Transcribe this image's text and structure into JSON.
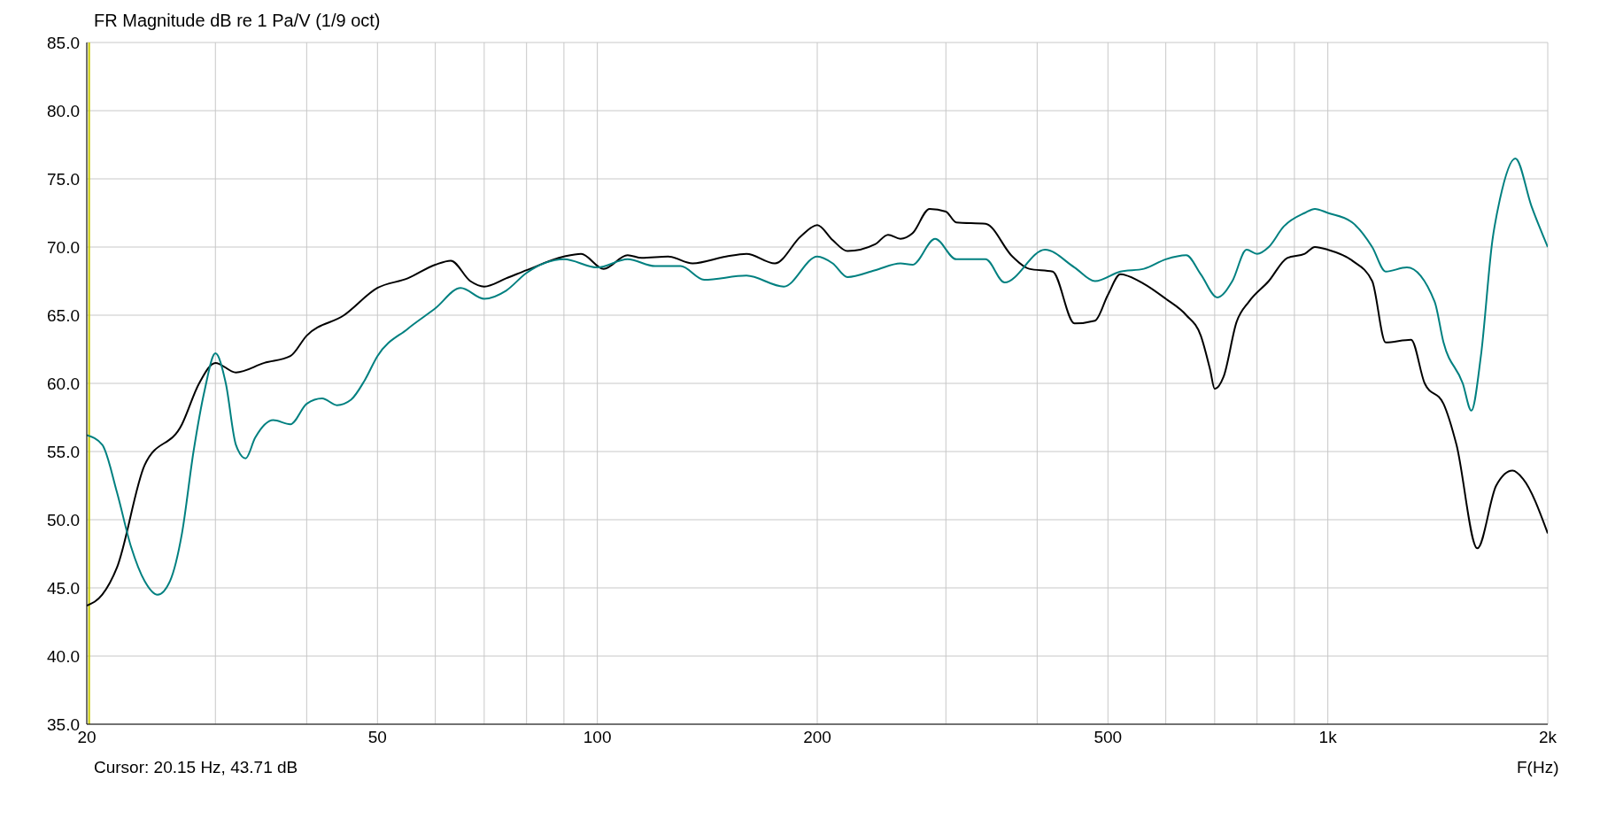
{
  "chart_data": {
    "type": "line",
    "title": "FR Magnitude dB re 1 Pa/V (1/9 oct)",
    "xlabel": "F(Hz)",
    "annotations": [
      "Cursor: 20.15 Hz, 43.71 dB"
    ],
    "log": "x",
    "grid": true,
    "marker": "none",
    "line_style": "solid",
    "xlim": [
      20,
      2000
    ],
    "xticks": [
      20,
      {
        "value": 30,
        "label": null
      },
      {
        "value": 40,
        "label": null
      },
      50,
      {
        "value": 60,
        "label": null
      },
      {
        "value": 70,
        "label": null
      },
      {
        "value": 80,
        "label": null
      },
      {
        "value": 90,
        "label": null
      },
      100,
      200,
      {
        "value": 300,
        "label": null
      },
      {
        "value": 400,
        "label": null
      },
      500,
      {
        "value": 600,
        "label": null
      },
      {
        "value": 700,
        "label": null
      },
      {
        "value": 800,
        "label": null
      },
      {
        "value": 900,
        "label": null
      },
      {
        "value": 1000,
        "label": "1k"
      },
      {
        "value": 2000,
        "label": "2k"
      }
    ],
    "ylim": [
      35,
      85
    ],
    "yticks": [
      {
        "value": 35,
        "label": "35.0"
      },
      {
        "value": 40,
        "label": "40.0"
      },
      {
        "value": 45,
        "label": "45.0"
      },
      {
        "value": 50,
        "label": "50.0"
      },
      {
        "value": 55,
        "label": "55.0"
      },
      {
        "value": 60,
        "label": "60.0"
      },
      {
        "value": 65,
        "label": "65.0"
      },
      {
        "value": 70,
        "label": "70.0"
      },
      {
        "value": 75,
        "label": "75.0"
      },
      {
        "value": 80,
        "label": "80.0"
      },
      {
        "value": 85,
        "label": "85.0"
      }
    ],
    "ref_lines": [
      {
        "axis": "x",
        "value": 20.15,
        "color": "#c8c800"
      }
    ],
    "series": [
      {
        "color": "#000000",
        "x": [
          20,
          21,
          22,
          24,
          27,
          28.5,
          30,
          32,
          35,
          38,
          40,
          45,
          50,
          55,
          60,
          63,
          67,
          70,
          75,
          80,
          90,
          95,
          102,
          110,
          115,
          125,
          135,
          150,
          160,
          175,
          190,
          200,
          210,
          220,
          240,
          250,
          260,
          270,
          285,
          300,
          310,
          340,
          370,
          390,
          420,
          450,
          480,
          500,
          520,
          560,
          600,
          640,
          670,
          690,
          700,
          720,
          750,
          780,
          830,
          880,
          930,
          960,
          1000,
          1080,
          1150,
          1200,
          1300,
          1357,
          1440,
          1500,
          1602,
          1700,
          1790,
          1850,
          2000
        ],
        "values": [
          43.7,
          44.5,
          46.5,
          54,
          57,
          60,
          61.5,
          60.8,
          61.5,
          62,
          63.5,
          65,
          67,
          67.7,
          68.7,
          69,
          67.5,
          67.1,
          67.7,
          68.3,
          69.3,
          69.5,
          68.4,
          69.4,
          69.2,
          69.3,
          68.8,
          69.3,
          69.5,
          68.8,
          70.8,
          71.6,
          70.5,
          69.7,
          70.2,
          70.9,
          70.6,
          71,
          72.8,
          72.6,
          71.8,
          71.7,
          69.3,
          68.4,
          68.2,
          64.4,
          64.6,
          66.5,
          68,
          67.3,
          66.2,
          65,
          63.5,
          61,
          59.6,
          60.5,
          64.5,
          66,
          67.5,
          69.2,
          69.5,
          70,
          69.8,
          69,
          67.5,
          63,
          63.2,
          60,
          58.5,
          55.5,
          47.9,
          52.5,
          53.6,
          53,
          49
        ]
      },
      {
        "color": "#008080",
        "x": [
          20,
          21,
          22,
          23,
          24,
          25,
          26,
          27,
          28,
          29,
          30,
          31,
          32,
          33,
          34,
          36,
          38,
          40,
          42,
          44,
          46,
          48,
          50,
          55,
          60,
          65,
          70,
          75,
          80,
          90,
          100,
          110,
          120,
          130,
          140,
          160,
          180,
          200,
          210,
          220,
          240,
          260,
          270,
          290,
          310,
          340,
          361,
          410,
          450,
          480,
          520,
          560,
          600,
          640,
          670,
          706,
          740,
          774,
          800,
          830,
          870,
          930,
          960,
          1000,
          1080,
          1150,
          1200,
          1283,
          1400,
          1440,
          1530,
          1572,
          1620,
          1680,
          1720,
          1806,
          1900,
          2000
        ],
        "values": [
          56.2,
          55.5,
          52,
          48,
          45.5,
          44.5,
          45.5,
          49,
          55,
          59.5,
          62.2,
          60,
          55.5,
          54.5,
          56,
          57.3,
          57,
          58.5,
          58.9,
          58.4,
          58.8,
          60.2,
          62,
          64,
          65.5,
          67,
          66.2,
          66.8,
          68.1,
          69.1,
          68.5,
          69.1,
          68.6,
          68.6,
          67.6,
          67.9,
          67.1,
          69.3,
          68.8,
          67.8,
          68.3,
          68.8,
          68.7,
          70.6,
          69.1,
          69.1,
          67.4,
          69.8,
          68.5,
          67.5,
          68.2,
          68.4,
          69.1,
          69.4,
          68,
          66.3,
          67.5,
          69.8,
          69.5,
          70,
          71.5,
          72.5,
          72.8,
          72.5,
          71.8,
          70,
          68.2,
          68.5,
          66,
          63,
          60,
          58,
          62,
          70.5,
          73.5,
          76.5,
          73,
          70
        ]
      }
    ]
  }
}
